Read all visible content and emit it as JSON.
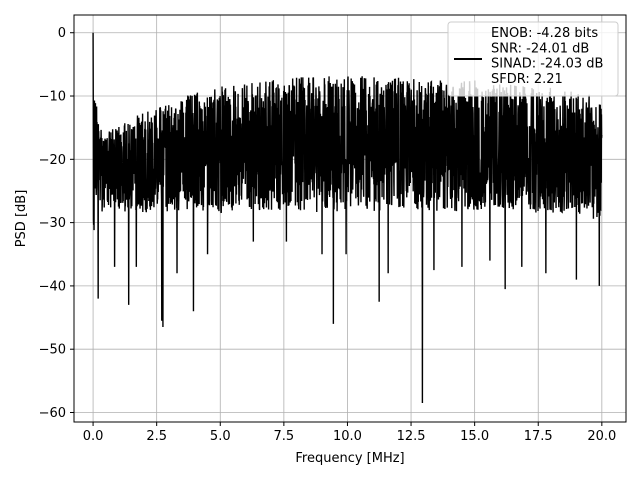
{
  "chart_data": {
    "type": "line",
    "xlabel": "Frequency [MHz]",
    "ylabel": "PSD [dB]",
    "xlim": [
      -0.75,
      20.95
    ],
    "ylim": [
      -61.5,
      2.8
    ],
    "x_ticks": [
      0.0,
      2.5,
      5.0,
      7.5,
      10.0,
      12.5,
      15.0,
      17.5,
      20.0
    ],
    "x_tick_labels": [
      "0.0",
      "2.5",
      "5.0",
      "7.5",
      "10.0",
      "12.5",
      "15.0",
      "17.5",
      "20.0"
    ],
    "y_ticks": [
      0,
      -10,
      -20,
      -30,
      -40,
      -50,
      -60
    ],
    "y_tick_labels": [
      "0",
      "−10",
      "−20",
      "−30",
      "−40",
      "−50",
      "−60"
    ],
    "grid": true,
    "legend_position": "top-right",
    "series": [
      {
        "name": "ENOB: -4.28 bits\nSNR: -24.01 dB\nSINAD: -24.03 dB\nSFDR: 2.21",
        "color": "#000000",
        "x_range": [
          0,
          20
        ],
        "peak": {
          "x": 0.0,
          "y": 0.0
        },
        "envelope_x": [
          0.0,
          0.1,
          0.25,
          0.5,
          1.0,
          1.5,
          2.0,
          2.5,
          3.0,
          3.5,
          4.0,
          5.0,
          6.0,
          7.0,
          8.0,
          9.0,
          10.0,
          11.0,
          12.0,
          13.0,
          14.0,
          15.0,
          16.0,
          17.0,
          18.0,
          19.0,
          20.0
        ],
        "envelope_upper": [
          0.0,
          -10.0,
          -14.0,
          -16.0,
          -14.5,
          -13.5,
          -12.5,
          -12.0,
          -11.0,
          -10.0,
          -9.5,
          -8.5,
          -8.0,
          -7.5,
          -7.0,
          -7.0,
          -6.5,
          -7.0,
          -7.0,
          -7.5,
          -7.5,
          -7.5,
          -8.0,
          -8.5,
          -8.5,
          -9.5,
          -10.0
        ],
        "envelope_lower": [
          -33.0,
          -29.0,
          -28.5,
          -28.0,
          -28.0,
          -28.5,
          -28.5,
          -28.0,
          -28.5,
          -28.5,
          -28.0,
          -28.5,
          -28.0,
          -28.0,
          -28.0,
          -28.5,
          -28.0,
          -28.5,
          -28.0,
          -28.0,
          -28.5,
          -28.0,
          -28.0,
          -28.5,
          -28.5,
          -28.5,
          -30.0
        ],
        "dips": [
          {
            "x": 0.2,
            "y": -42.0
          },
          {
            "x": 0.85,
            "y": -37.0
          },
          {
            "x": 1.4,
            "y": -43.0
          },
          {
            "x": 1.7,
            "y": -37.0
          },
          {
            "x": 2.7,
            "y": -45.5
          },
          {
            "x": 2.75,
            "y": -46.5
          },
          {
            "x": 3.3,
            "y": -38.0
          },
          {
            "x": 3.95,
            "y": -44.0
          },
          {
            "x": 4.5,
            "y": -35.0
          },
          {
            "x": 6.3,
            "y": -33.0
          },
          {
            "x": 7.6,
            "y": -33.0
          },
          {
            "x": 9.0,
            "y": -35.0
          },
          {
            "x": 9.45,
            "y": -46.0
          },
          {
            "x": 9.95,
            "y": -35.0
          },
          {
            "x": 11.25,
            "y": -42.5
          },
          {
            "x": 11.6,
            "y": -38.0
          },
          {
            "x": 12.95,
            "y": -58.5
          },
          {
            "x": 13.4,
            "y": -37.5
          },
          {
            "x": 14.5,
            "y": -37.0
          },
          {
            "x": 15.6,
            "y": -36.0
          },
          {
            "x": 16.2,
            "y": -40.5
          },
          {
            "x": 16.85,
            "y": -37.0
          },
          {
            "x": 17.8,
            "y": -38.0
          },
          {
            "x": 19.0,
            "y": -39.0
          },
          {
            "x": 19.9,
            "y": -40.0
          }
        ]
      }
    ]
  }
}
